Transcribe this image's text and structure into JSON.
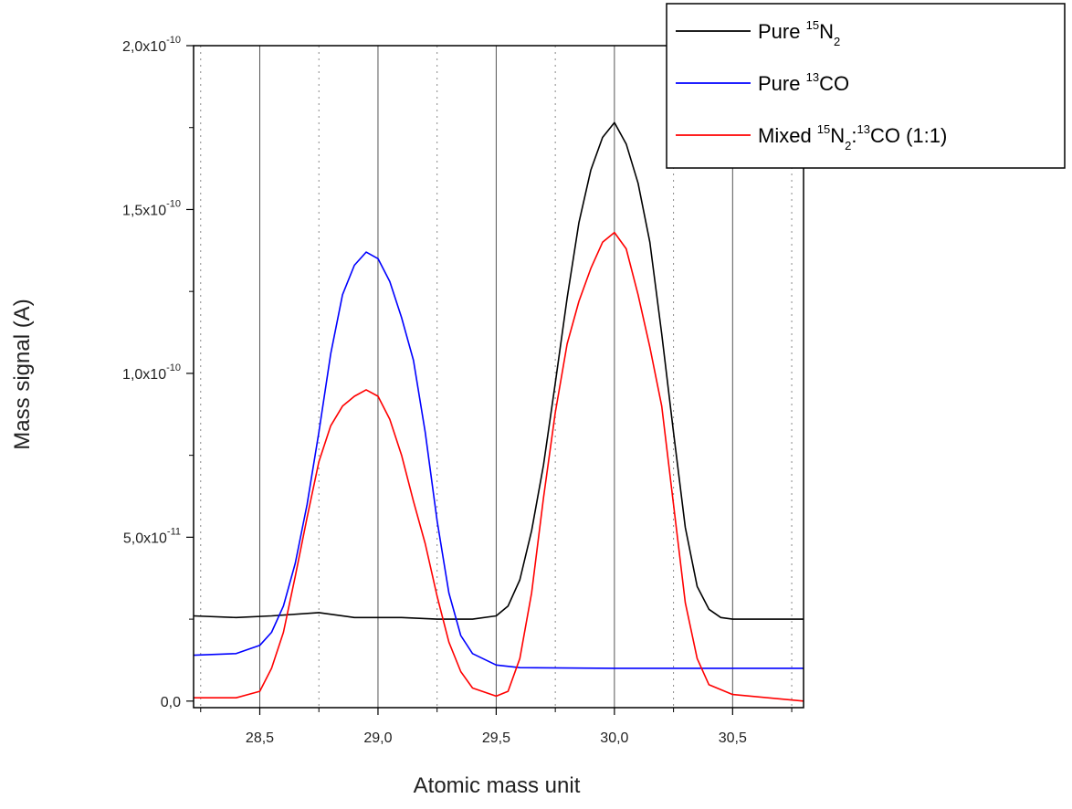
{
  "chart_data": {
    "type": "line",
    "title": "",
    "xlabel": "Atomic mass unit",
    "ylabel": "Mass signal (A)",
    "xlim": [
      28.22,
      30.8
    ],
    "ylim": [
      -2e-12,
      2e-10
    ],
    "x_ticks": [
      {
        "value": 28.5,
        "label": "28,5"
      },
      {
        "value": 29.0,
        "label": "29,0"
      },
      {
        "value": 29.5,
        "label": "29,5"
      },
      {
        "value": 30.0,
        "label": "30,0"
      },
      {
        "value": 30.5,
        "label": "30,5"
      }
    ],
    "x_minor_ticks": [
      28.25,
      28.75,
      29.25,
      29.75,
      30.25,
      30.75
    ],
    "y_ticks": [
      {
        "value": 0,
        "mantissa": "0,0",
        "exponent": ""
      },
      {
        "value": 5e-11,
        "mantissa": "5,0x10",
        "exponent": "-11"
      },
      {
        "value": 1e-10,
        "mantissa": "1,0x10",
        "exponent": "-10"
      },
      {
        "value": 1.5e-10,
        "mantissa": "1,5x10",
        "exponent": "-10"
      },
      {
        "value": 2e-10,
        "mantissa": "2,0x10",
        "exponent": "-10"
      }
    ],
    "grid": true,
    "legend_position": "top-right",
    "series": [
      {
        "name": "Pure 15N2",
        "legend": {
          "pre": "Pure ",
          "parts": [
            {
              "sup": "15"
            },
            {
              "t": "N"
            },
            {
              "sub": "2"
            }
          ]
        },
        "color": "#000000",
        "points": [
          [
            28.22,
            2.6e-11
          ],
          [
            28.4,
            2.55e-11
          ],
          [
            28.55,
            2.6e-11
          ],
          [
            28.75,
            2.7e-11
          ],
          [
            28.9,
            2.55e-11
          ],
          [
            29.1,
            2.55e-11
          ],
          [
            29.25,
            2.5e-11
          ],
          [
            29.4,
            2.5e-11
          ],
          [
            29.5,
            2.6e-11
          ],
          [
            29.55,
            2.9e-11
          ],
          [
            29.6,
            3.7e-11
          ],
          [
            29.65,
            5.2e-11
          ],
          [
            29.7,
            7.2e-11
          ],
          [
            29.75,
            9.7e-11
          ],
          [
            29.8,
            1.23e-10
          ],
          [
            29.85,
            1.46e-10
          ],
          [
            29.9,
            1.62e-10
          ],
          [
            29.95,
            1.72e-10
          ],
          [
            30.0,
            1.765e-10
          ],
          [
            30.05,
            1.7e-10
          ],
          [
            30.1,
            1.58e-10
          ],
          [
            30.15,
            1.4e-10
          ],
          [
            30.2,
            1.12e-10
          ],
          [
            30.25,
            8.2e-11
          ],
          [
            30.3,
            5.3e-11
          ],
          [
            30.35,
            3.5e-11
          ],
          [
            30.4,
            2.8e-11
          ],
          [
            30.45,
            2.55e-11
          ],
          [
            30.5,
            2.5e-11
          ],
          [
            30.8,
            2.5e-11
          ]
        ]
      },
      {
        "name": "Pure 13CO",
        "legend": {
          "pre": "Pure ",
          "parts": [
            {
              "sup": "13"
            },
            {
              "t": "CO"
            }
          ]
        },
        "color": "#0000ff",
        "points": [
          [
            28.22,
            1.4e-11
          ],
          [
            28.4,
            1.45e-11
          ],
          [
            28.5,
            1.7e-11
          ],
          [
            28.55,
            2.1e-11
          ],
          [
            28.6,
            2.9e-11
          ],
          [
            28.65,
            4.2e-11
          ],
          [
            28.7,
            6e-11
          ],
          [
            28.75,
            8.2e-11
          ],
          [
            28.8,
            1.06e-10
          ],
          [
            28.85,
            1.24e-10
          ],
          [
            28.9,
            1.33e-10
          ],
          [
            28.95,
            1.37e-10
          ],
          [
            29.0,
            1.35e-10
          ],
          [
            29.05,
            1.28e-10
          ],
          [
            29.1,
            1.17e-10
          ],
          [
            29.15,
            1.04e-10
          ],
          [
            29.2,
            8.2e-11
          ],
          [
            29.25,
            5.5e-11
          ],
          [
            29.3,
            3.3e-11
          ],
          [
            29.35,
            2e-11
          ],
          [
            29.4,
            1.45e-11
          ],
          [
            29.5,
            1.1e-11
          ],
          [
            29.6,
            1.02e-11
          ],
          [
            30.0,
            1e-11
          ],
          [
            30.5,
            1e-11
          ],
          [
            30.8,
            1e-11
          ]
        ]
      },
      {
        "name": "Mixed 15N2:13CO (1:1)",
        "legend": {
          "pre": "Mixed ",
          "parts": [
            {
              "sup": "15"
            },
            {
              "t": "N"
            },
            {
              "sub": "2"
            },
            {
              "t": ":"
            },
            {
              "sup": "13"
            },
            {
              "t": "CO (1:1)"
            }
          ]
        },
        "color": "#ff0000",
        "points": [
          [
            28.22,
            1e-12
          ],
          [
            28.4,
            1e-12
          ],
          [
            28.5,
            3e-12
          ],
          [
            28.55,
            1e-11
          ],
          [
            28.6,
            2.1e-11
          ],
          [
            28.65,
            3.8e-11
          ],
          [
            28.7,
            5.6e-11
          ],
          [
            28.75,
            7.3e-11
          ],
          [
            28.8,
            8.4e-11
          ],
          [
            28.85,
            9e-11
          ],
          [
            28.9,
            9.3e-11
          ],
          [
            28.95,
            9.5e-11
          ],
          [
            29.0,
            9.3e-11
          ],
          [
            29.05,
            8.6e-11
          ],
          [
            29.1,
            7.5e-11
          ],
          [
            29.15,
            6.1e-11
          ],
          [
            29.2,
            4.8e-11
          ],
          [
            29.25,
            3.2e-11
          ],
          [
            29.3,
            1.8e-11
          ],
          [
            29.35,
            9e-12
          ],
          [
            29.4,
            4e-12
          ],
          [
            29.5,
            1.5e-12
          ],
          [
            29.55,
            3e-12
          ],
          [
            29.6,
            1.3e-11
          ],
          [
            29.65,
            3.3e-11
          ],
          [
            29.7,
            6.2e-11
          ],
          [
            29.75,
            8.8e-11
          ],
          [
            29.8,
            1.09e-10
          ],
          [
            29.85,
            1.22e-10
          ],
          [
            29.9,
            1.32e-10
          ],
          [
            29.95,
            1.4e-10
          ],
          [
            30.0,
            1.43e-10
          ],
          [
            30.05,
            1.38e-10
          ],
          [
            30.1,
            1.24e-10
          ],
          [
            30.15,
            1.08e-10
          ],
          [
            30.2,
            9e-11
          ],
          [
            30.25,
            6e-11
          ],
          [
            30.3,
            3e-11
          ],
          [
            30.35,
            1.3e-11
          ],
          [
            30.4,
            5e-12
          ],
          [
            30.5,
            2e-12
          ],
          [
            30.8,
            0.0
          ]
        ]
      }
    ]
  }
}
